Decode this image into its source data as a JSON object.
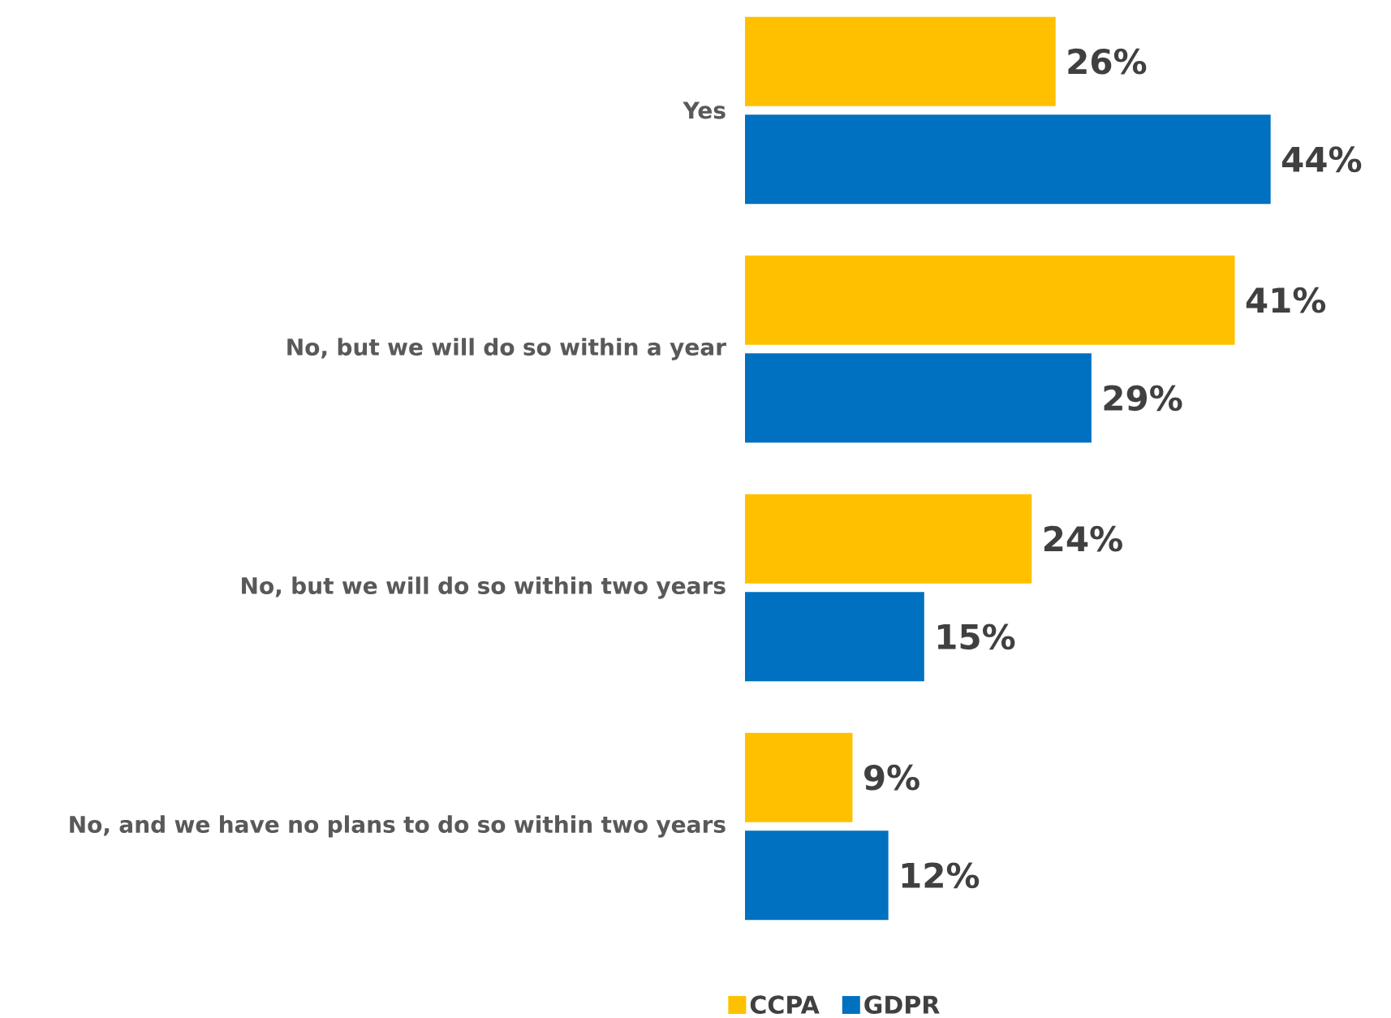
{
  "chart_data": {
    "type": "bar",
    "orientation": "horizontal",
    "legend": "bottom",
    "categories": [
      "Yes",
      "No, but we will do so within a year",
      "No, but we will do so within two years",
      "No, and we have no plans to do so within two years"
    ],
    "series": [
      {
        "name": "CCPA",
        "color": "#ffc000",
        "values": [
          26,
          41,
          24,
          9
        ],
        "value_labels": [
          "26%",
          "41%",
          "24%",
          "9%"
        ]
      },
      {
        "name": "GDPR",
        "color": "#0070c0",
        "values": [
          44,
          29,
          15,
          12
        ],
        "value_labels": [
          "44%",
          "29%",
          "15%",
          "12%"
        ]
      }
    ]
  }
}
